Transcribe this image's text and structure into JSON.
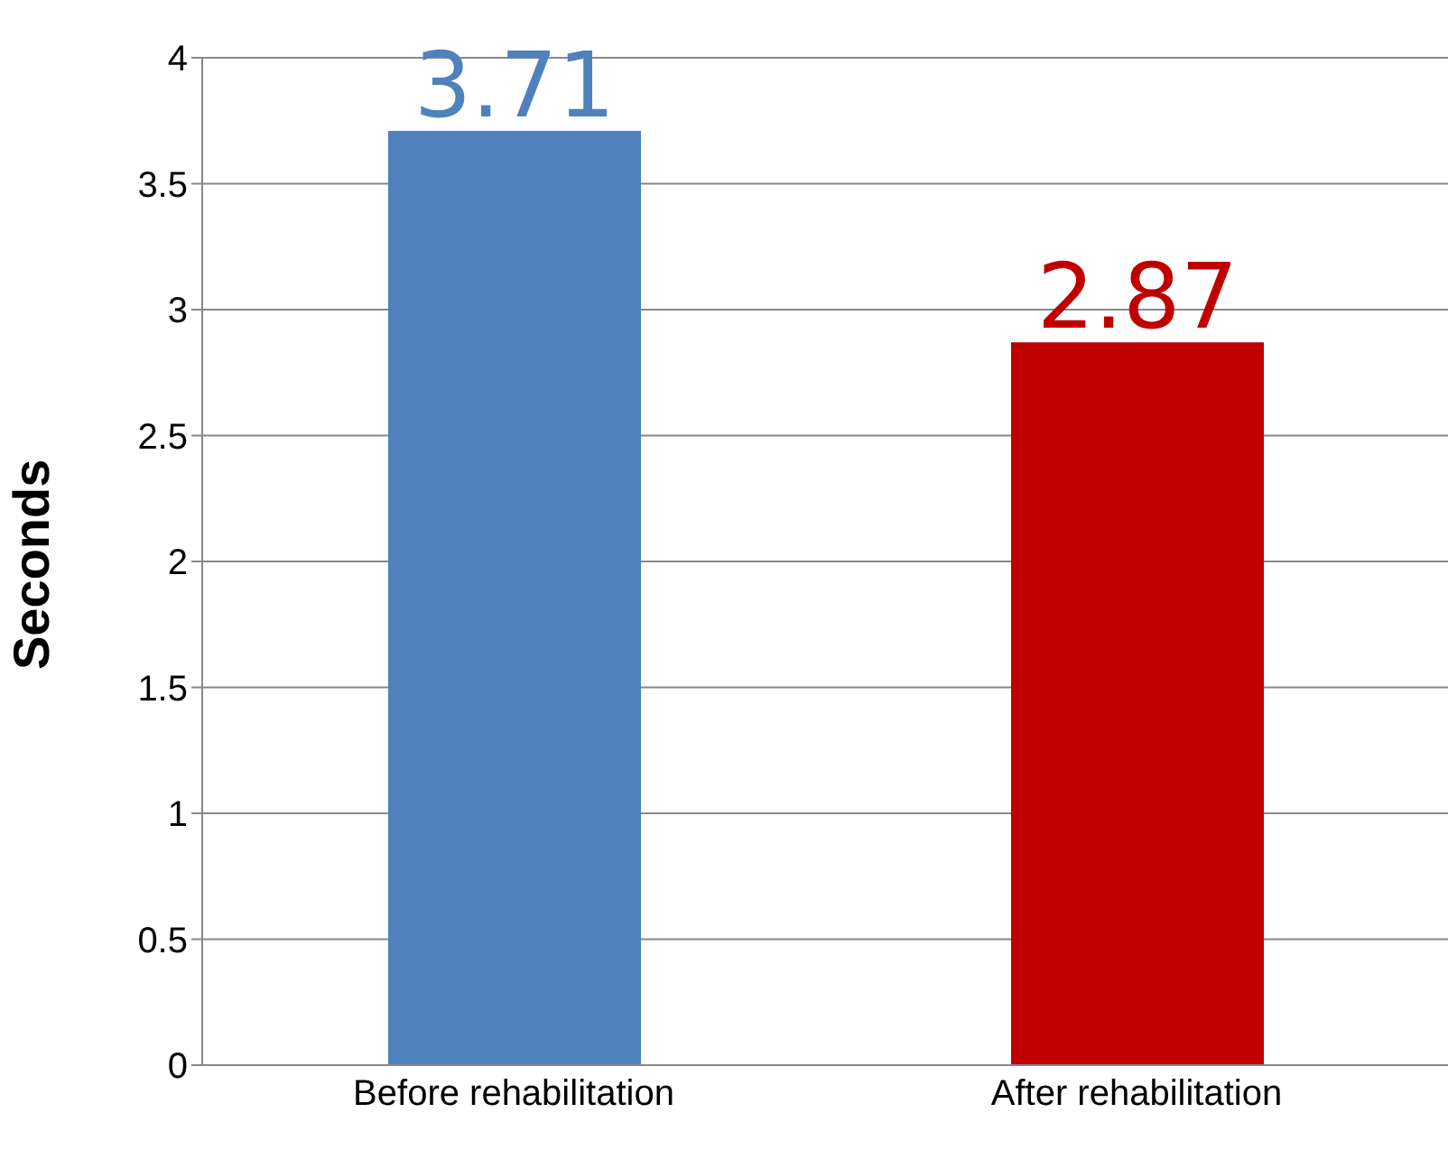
{
  "chart_data": {
    "type": "bar",
    "ylabel": "Seconds",
    "categories": [
      "Before rehabilitation",
      "After rehabilitation"
    ],
    "values": [
      3.71,
      2.87
    ],
    "colors": [
      "#4f81bd",
      "#c00000"
    ],
    "ylim": [
      0,
      4
    ],
    "yticks": [
      0,
      0.5,
      1,
      1.5,
      2,
      2.5,
      3,
      3.5,
      4
    ],
    "grid": "y",
    "data_labels": true
  }
}
